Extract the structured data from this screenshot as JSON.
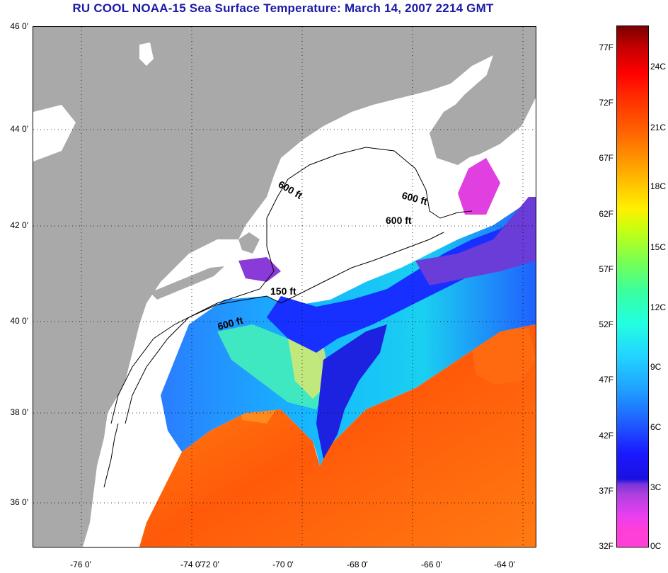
{
  "title": "RU COOL  NOAA-15  Sea Surface Temperature:  March 14, 2007 2214 GMT",
  "latitude_labels": [
    "46 0'",
    "44 0'",
    "42 0'",
    "40 0'",
    "38 0'",
    "36 0'"
  ],
  "longitude_labels": [
    "-76 0'",
    "-74 0'",
    "-72 0'",
    "-70 0'",
    "-68 0'",
    "-66 0'",
    "-64 0'"
  ],
  "depth_contour_labels": [
    "600 ft",
    "600 ft",
    "600 ft",
    "150 ft",
    "600 ft"
  ],
  "colorbar": {
    "fahrenheit_labels": [
      "77F",
      "72F",
      "67F",
      "62F",
      "57F",
      "52F",
      "47F",
      "42F",
      "37F",
      "32F"
    ],
    "celsius_labels": [
      "24C",
      "21C",
      "18C",
      "15C",
      "12C",
      "9C",
      "6C",
      "3C",
      "0C"
    ]
  },
  "colors": {
    "land": "#a9a9a9",
    "cloud_cover": "#ffffff",
    "title": "#1a1aa6"
  }
}
